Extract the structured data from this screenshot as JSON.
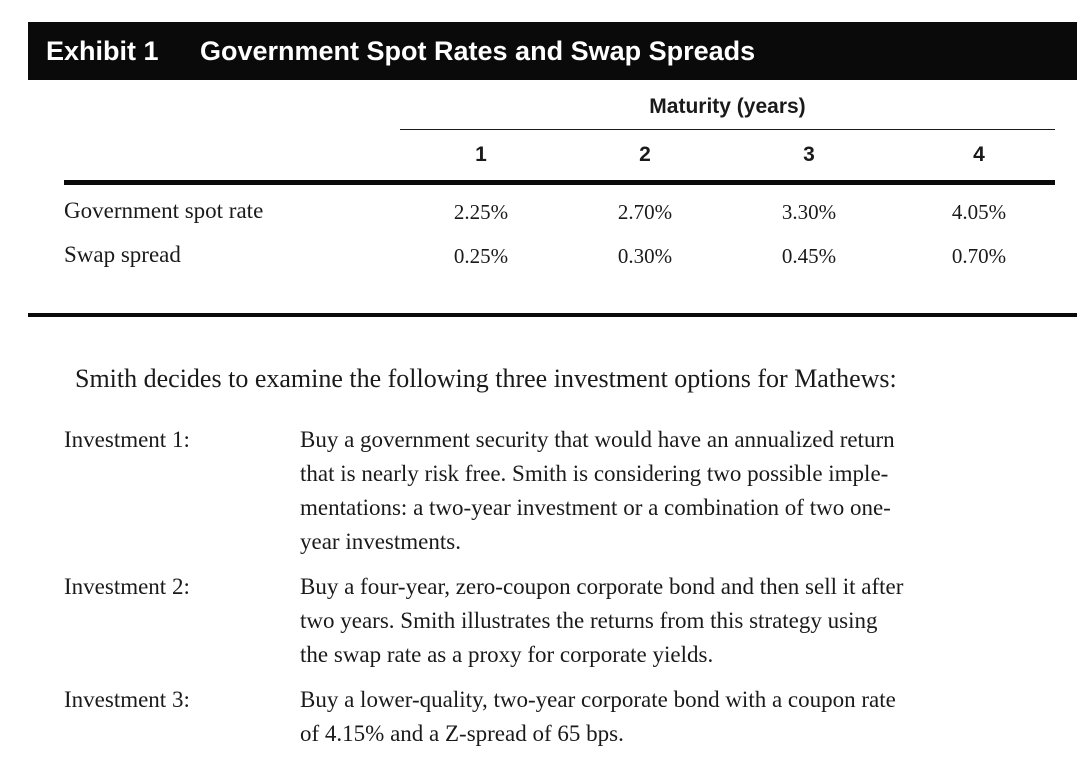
{
  "exhibit": {
    "label": "Exhibit 1",
    "title": "Government Spot Rates and Swap Spreads"
  },
  "table": {
    "group_header": "Maturity (years)",
    "columns": [
      "1",
      "2",
      "3",
      "4"
    ],
    "rows": [
      {
        "label": "Government spot rate",
        "values": [
          "2.25%",
          "2.70%",
          "3.30%",
          "4.05%"
        ]
      },
      {
        "label": "Swap spread",
        "values": [
          "0.25%",
          "0.30%",
          "0.45%",
          "0.70%"
        ]
      }
    ]
  },
  "body": {
    "intro": "Smith decides to examine the following three investment options for Mathews:",
    "investments": [
      {
        "label": "Investment 1:",
        "lines": [
          "Buy a government security that would have an annualized return",
          "that is nearly risk free. Smith is considering two possible imple-",
          "mentations: a two-year investment or a combination of two one-",
          "year investments."
        ]
      },
      {
        "label": "Investment 2:",
        "lines": [
          "Buy a four-year, zero-coupon corporate bond and then sell it after",
          "two years. Smith illustrates the returns from this strategy using",
          "the swap rate as a proxy for corporate yields."
        ]
      },
      {
        "label": "Investment 3:",
        "lines": [
          "Buy a lower-quality, two-year corporate bond with a coupon rate",
          "of 4.15% and a Z-spread of 65 bps."
        ]
      }
    ]
  }
}
